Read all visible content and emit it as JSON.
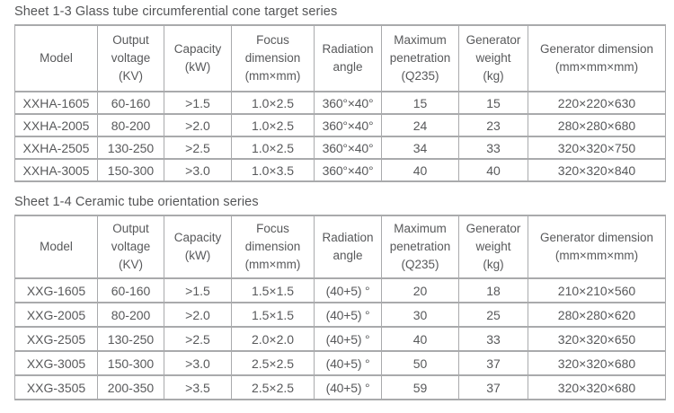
{
  "document": {
    "background_color": "#ffffff",
    "text_color": "#58595b",
    "border_color": "#a9aaac"
  },
  "tables": [
    {
      "title": "Sheet 1-3 Glass tube circumferential cone target series",
      "headers": [
        {
          "name": "model",
          "lines": [
            "Model"
          ]
        },
        {
          "name": "output-voltage",
          "lines": [
            "Output",
            "voltage",
            "(KV)"
          ]
        },
        {
          "name": "capacity",
          "lines": [
            "Capacity",
            "(kW)"
          ]
        },
        {
          "name": "focus-dimension",
          "lines": [
            "Focus",
            "dimension",
            "(mm×mm)"
          ]
        },
        {
          "name": "radiation-angle",
          "lines": [
            "Radiation",
            "angle"
          ]
        },
        {
          "name": "maximum-penetration",
          "lines": [
            "Maximum",
            "penetration",
            "(Q235)"
          ]
        },
        {
          "name": "generator-weight",
          "lines": [
            "Generator",
            "weight",
            "(kg)"
          ]
        },
        {
          "name": "generator-dimension",
          "lines": [
            "Generator dimension",
            "(mm×mm×mm)"
          ]
        }
      ],
      "rows": [
        {
          "cells": [
            "XXHA-1605",
            "60-160",
            ">1.5",
            "1.0×2.5",
            "360°×40°",
            "15",
            "15",
            "220×220×630"
          ]
        },
        {
          "cells": [
            "XXHA-2005",
            "80-200",
            ">2.0",
            "1.0×2.5",
            "360°×40°",
            "24",
            "23",
            "280×280×680"
          ]
        },
        {
          "cells": [
            "XXHA-2505",
            "130-250",
            ">2.5",
            "1.0×2.5",
            "360°×40°",
            "34",
            "33",
            "320×320×750"
          ]
        },
        {
          "cells": [
            "XXHA-3005",
            "150-300",
            ">3.0",
            "1.0×3.5",
            "360°×40°",
            "40",
            "40",
            "320×320×840"
          ]
        }
      ]
    },
    {
      "title": "Sheet 1-4 Ceramic tube orientation series",
      "headers": [
        {
          "name": "model",
          "lines": [
            "Model"
          ]
        },
        {
          "name": "output-voltage",
          "lines": [
            "Output",
            "voltage",
            "(KV)"
          ]
        },
        {
          "name": "capacity",
          "lines": [
            "Capacity",
            "(kW)"
          ]
        },
        {
          "name": "focus-dimension",
          "lines": [
            "Focus",
            "dimension",
            "(mm×mm)"
          ]
        },
        {
          "name": "radiation-angle",
          "lines": [
            "Radiation",
            "angle"
          ]
        },
        {
          "name": "maximum-penetration",
          "lines": [
            "Maximum",
            "penetration",
            "(Q235)"
          ]
        },
        {
          "name": "generator-weight",
          "lines": [
            "Generator",
            "weight",
            "(kg)"
          ]
        },
        {
          "name": "generator-dimension",
          "lines": [
            "Generator dimension",
            "(mm×mm×mm)"
          ]
        }
      ],
      "rows": [
        {
          "cells": [
            "XXG-1605",
            "60-160",
            ">1.5",
            "1.5×1.5",
            "(40+5) °",
            "20",
            "18",
            "210×210×560"
          ]
        },
        {
          "cells": [
            "XXG-2005",
            "80-200",
            ">2.0",
            "1.5×1.5",
            "(40+5) °",
            "30",
            "25",
            "280×280×620"
          ]
        },
        {
          "cells": [
            "XXG-2505",
            "130-250",
            ">2.5",
            "2.0×2.0",
            "(40+5) °",
            "40",
            "33",
            "320×320×650"
          ]
        },
        {
          "cells": [
            "XXG-3005",
            "150-300",
            ">3.0",
            "2.5×2.5",
            "(40+5) °",
            "50",
            "37",
            "320×320×680"
          ]
        },
        {
          "cells": [
            "XXG-3505",
            "200-350",
            ">3.5",
            "2.5×2.5",
            "(40+5) °",
            "59",
            "37",
            "320×320×680"
          ]
        }
      ]
    }
  ]
}
